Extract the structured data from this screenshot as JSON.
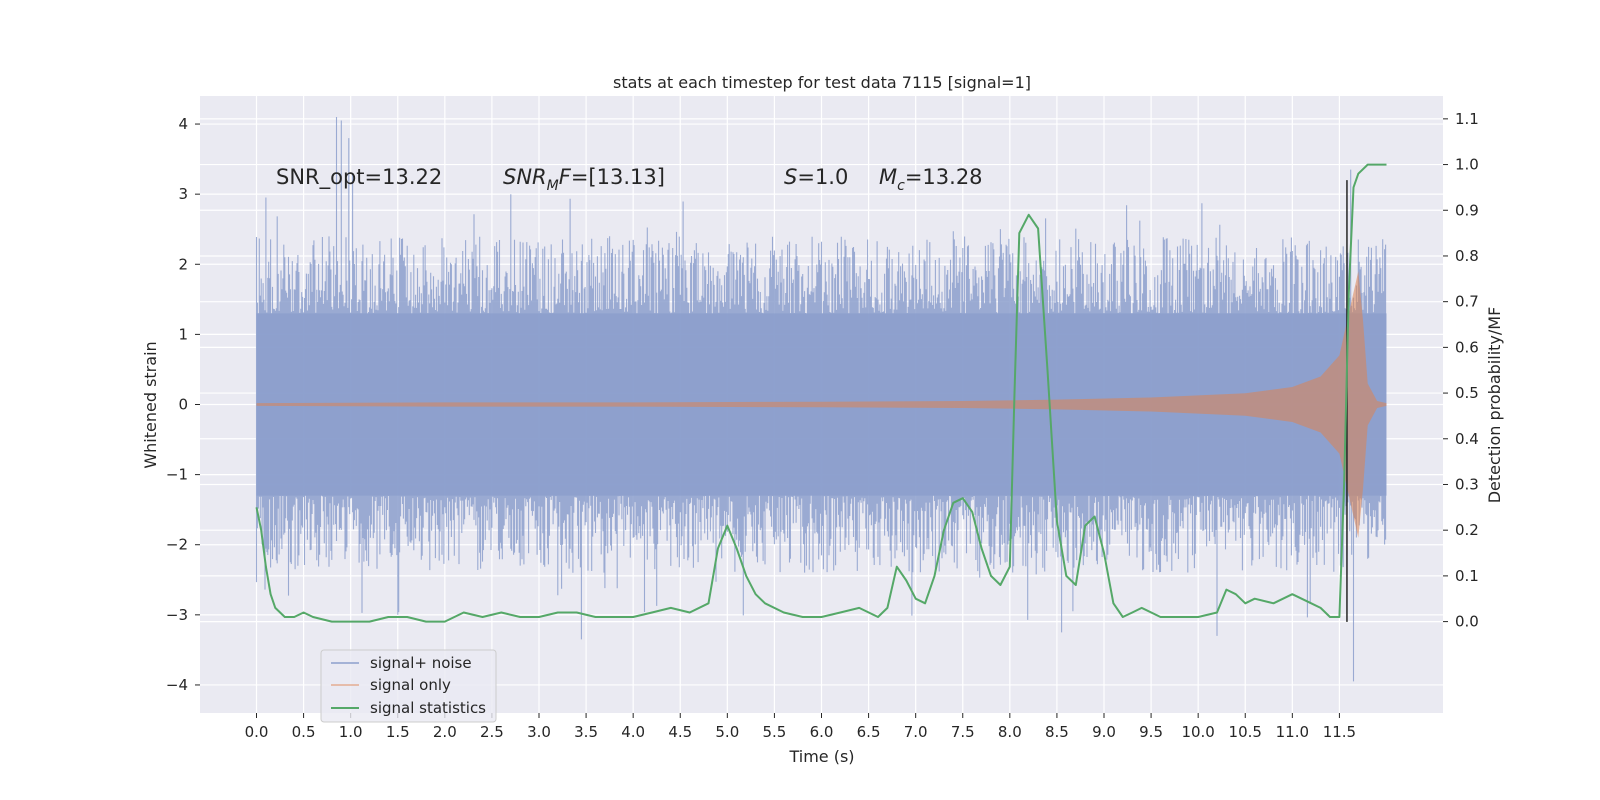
{
  "chart_data": {
    "type": "line",
    "title": "stats at each timestep for test data 7115 [signal=1]",
    "xlabel": "Time (s)",
    "ylabel": "Whitened strain",
    "y2label": "Detection probability/MF",
    "xlim": [
      -0.6,
      12.6
    ],
    "ylim": [
      -4.4,
      4.4
    ],
    "y2lim": [
      -0.2,
      1.15
    ],
    "x_ticks": [
      0.0,
      0.5,
      1.0,
      1.5,
      2.0,
      2.5,
      3.0,
      3.5,
      4.0,
      4.5,
      5.0,
      5.5,
      6.0,
      6.5,
      7.0,
      7.5,
      8.0,
      8.5,
      9.0,
      9.5,
      10.0,
      10.5,
      11.0,
      11.5
    ],
    "x_tick_labels": [
      "0.0",
      "0.5",
      "1.0",
      "1.5",
      "2.0",
      "2.5",
      "3.0",
      "3.5",
      "4.0",
      "4.5",
      "5.0",
      "5.5",
      "6.0",
      "6.5",
      "7.0",
      "7.5",
      "8.0",
      "8.5",
      "9.0",
      "9.5",
      "10.0",
      "10.5",
      "11.0",
      "11.5"
    ],
    "y_ticks": [
      4,
      3,
      2,
      1,
      0,
      -1,
      -2,
      -3,
      -4
    ],
    "y_tick_labels": [
      "4",
      "3",
      "2",
      "1",
      "0",
      "−1",
      "−2",
      "−3",
      "−4"
    ],
    "y2_ticks": [
      1.1,
      1.0,
      0.9,
      0.8,
      0.7,
      0.6,
      0.5,
      0.4,
      0.3,
      0.2,
      0.1,
      0.0
    ],
    "y2_tick_labels": [
      "1.1",
      "1.0",
      "0.9",
      "0.8",
      "0.7",
      "0.6",
      "0.5",
      "0.4",
      "0.3",
      "0.2",
      "0.1",
      "0.0"
    ],
    "annotations": {
      "snr_opt": "SNR_opt=13.22",
      "snr_mf": "=[13.13]",
      "s_val": "=1.0",
      "mc_val": "=13.28"
    },
    "legend": {
      "placement": "lower-left",
      "entries": [
        "signal+ noise",
        "signal only",
        "signal statistics"
      ]
    },
    "vertical_marker_x": 11.58,
    "series": [
      {
        "name": "signal+ noise",
        "color": "#8c9fcc",
        "t_start": 0.0,
        "t_end": 12.0,
        "core_band": [
          -1.3,
          1.3
        ],
        "typical_peak_range": [
          -2.4,
          2.4
        ],
        "highlights": [
          {
            "x": 0.85,
            "y": 4.1
          },
          {
            "x": 0.9,
            "y": 4.05
          },
          {
            "x": 0.98,
            "y": 3.8
          },
          {
            "x": 1.02,
            "y": 3.3
          },
          {
            "x": 2.7,
            "y": 3.0
          },
          {
            "x": 11.62,
            "y": 3.35
          },
          {
            "x": 11.65,
            "y": -3.95
          },
          {
            "x": 3.45,
            "y": -3.35
          },
          {
            "x": 1.5,
            "y": -3.0
          },
          {
            "x": 8.55,
            "y": -3.25
          },
          {
            "x": 10.2,
            "y": -3.3
          }
        ]
      },
      {
        "name": "signal only",
        "color": "#dd8452",
        "t_start": 0.0,
        "t_end": 12.0,
        "envelope": [
          [
            0.0,
            0.02
          ],
          [
            2.0,
            0.03
          ],
          [
            4.0,
            0.03
          ],
          [
            6.0,
            0.04
          ],
          [
            7.5,
            0.05
          ],
          [
            8.5,
            0.07
          ],
          [
            9.5,
            0.1
          ],
          [
            10.5,
            0.16
          ],
          [
            11.0,
            0.25
          ],
          [
            11.3,
            0.4
          ],
          [
            11.5,
            0.7
          ],
          [
            11.6,
            1.3
          ],
          [
            11.7,
            1.9
          ],
          [
            11.75,
            1.2
          ],
          [
            11.8,
            0.3
          ],
          [
            11.9,
            0.05
          ],
          [
            12.0,
            0.02
          ]
        ]
      },
      {
        "name": "signal statistics",
        "color": "#55a868",
        "axis": "right",
        "x": [
          0.0,
          0.05,
          0.1,
          0.15,
          0.2,
          0.3,
          0.4,
          0.5,
          0.6,
          0.8,
          1.0,
          1.2,
          1.4,
          1.6,
          1.8,
          2.0,
          2.2,
          2.4,
          2.6,
          2.8,
          3.0,
          3.2,
          3.4,
          3.6,
          3.8,
          4.0,
          4.2,
          4.4,
          4.6,
          4.8,
          4.9,
          5.0,
          5.1,
          5.2,
          5.3,
          5.4,
          5.6,
          5.8,
          6.0,
          6.2,
          6.4,
          6.6,
          6.7,
          6.8,
          6.9,
          7.0,
          7.1,
          7.2,
          7.3,
          7.4,
          7.5,
          7.6,
          7.7,
          7.8,
          7.9,
          8.0,
          8.05,
          8.1,
          8.2,
          8.3,
          8.4,
          8.5,
          8.6,
          8.7,
          8.8,
          8.9,
          9.0,
          9.1,
          9.2,
          9.3,
          9.4,
          9.6,
          9.8,
          10.0,
          10.2,
          10.3,
          10.4,
          10.5,
          10.6,
          10.8,
          11.0,
          11.2,
          11.3,
          11.4,
          11.5,
          11.55,
          11.6,
          11.65,
          11.7,
          11.8,
          11.9,
          12.0
        ],
        "y": [
          0.25,
          0.2,
          0.12,
          0.06,
          0.03,
          0.01,
          0.01,
          0.02,
          0.01,
          0.0,
          0.0,
          0.0,
          0.01,
          0.01,
          0.0,
          0.0,
          0.02,
          0.01,
          0.02,
          0.01,
          0.01,
          0.02,
          0.02,
          0.01,
          0.01,
          0.01,
          0.02,
          0.03,
          0.02,
          0.04,
          0.16,
          0.21,
          0.16,
          0.1,
          0.06,
          0.04,
          0.02,
          0.01,
          0.01,
          0.02,
          0.03,
          0.01,
          0.03,
          0.12,
          0.09,
          0.05,
          0.04,
          0.1,
          0.2,
          0.26,
          0.27,
          0.24,
          0.16,
          0.1,
          0.08,
          0.12,
          0.5,
          0.85,
          0.89,
          0.86,
          0.55,
          0.22,
          0.1,
          0.08,
          0.21,
          0.23,
          0.15,
          0.04,
          0.01,
          0.02,
          0.03,
          0.01,
          0.01,
          0.01,
          0.02,
          0.07,
          0.06,
          0.04,
          0.05,
          0.04,
          0.06,
          0.04,
          0.03,
          0.01,
          0.01,
          0.3,
          0.72,
          0.95,
          0.98,
          1.0,
          1.0,
          1.0
        ]
      }
    ]
  }
}
